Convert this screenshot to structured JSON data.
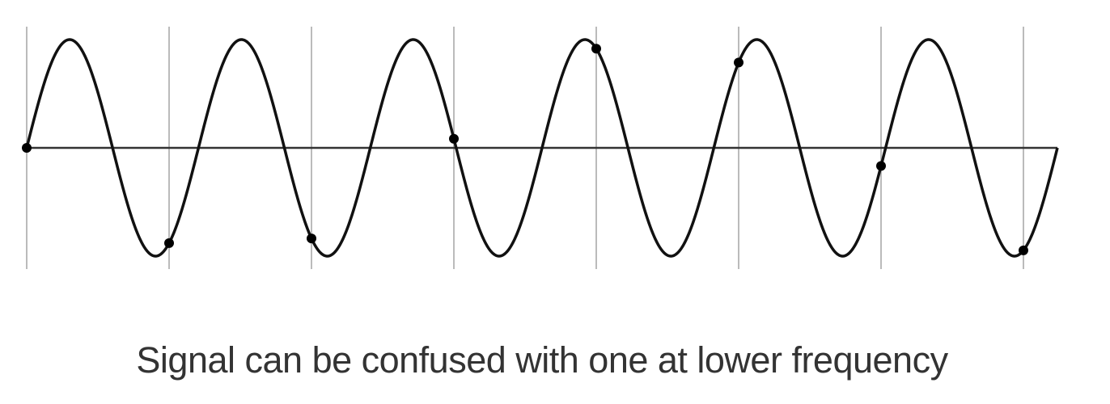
{
  "caption": "Signal can be confused with one at lower frequency",
  "colors": {
    "curve": "#111111",
    "axis": "#333333",
    "sample_line": "#bbbbbb",
    "sample_dot": "#000000",
    "caption_text": "#333333"
  },
  "diagram": {
    "signal_cycles": 6,
    "sample_count": 8,
    "sampling_interval_in_signal_periods": 0.83
  }
}
